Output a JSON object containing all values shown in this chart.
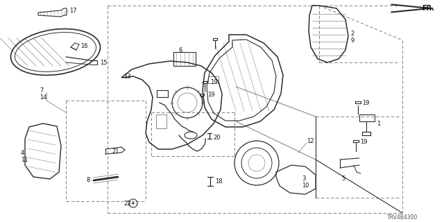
{
  "bg_color": "#ffffff",
  "line_color": "#2a2a2a",
  "light_line_color": "#888888",
  "dash_color": "#777777",
  "diagram_code": "TRV4B4300"
}
